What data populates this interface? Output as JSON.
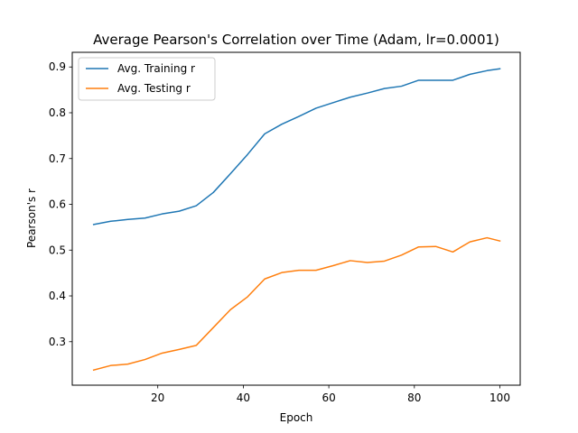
{
  "chart_data": {
    "type": "line",
    "title": "Average Pearson's Correlation over Time (Adam, lr=0.0001)",
    "xlabel": "Epoch",
    "ylabel": "Pearson's r",
    "xlim": [
      0,
      104.75
    ],
    "ylim": [
      0.205,
      0.932
    ],
    "xticks": [
      20,
      40,
      60,
      80,
      100
    ],
    "yticks": [
      0.3,
      0.4,
      0.5,
      0.6,
      0.7,
      0.8,
      0.9
    ],
    "grid": false,
    "legend": "top-left",
    "x": [
      5,
      9,
      13,
      17,
      21,
      25,
      29,
      33,
      37,
      41,
      45,
      49,
      53,
      57,
      61,
      65,
      69,
      73,
      77,
      81,
      85,
      89,
      93,
      97,
      100
    ],
    "series": [
      {
        "name": "Avg. Training r",
        "color": "#1f77b4",
        "values": [
          0.556,
          0.563,
          0.567,
          0.57,
          0.579,
          0.585,
          0.597,
          0.626,
          0.667,
          0.709,
          0.754,
          0.775,
          0.792,
          0.81,
          0.822,
          0.834,
          0.843,
          0.853,
          0.858,
          0.871,
          0.871,
          0.871,
          0.884,
          0.892,
          0.896
        ]
      },
      {
        "name": "Avg. Testing r",
        "color": "#ff7f0e",
        "values": [
          0.238,
          0.248,
          0.251,
          0.261,
          0.275,
          0.283,
          0.292,
          0.331,
          0.37,
          0.398,
          0.437,
          0.451,
          0.456,
          0.456,
          0.466,
          0.477,
          0.473,
          0.476,
          0.489,
          0.507,
          0.508,
          0.496,
          0.518,
          0.527,
          0.52
        ]
      }
    ]
  }
}
